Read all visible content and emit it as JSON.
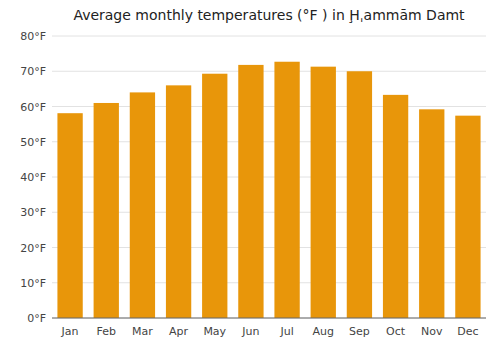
{
  "chart_data": {
    "type": "bar",
    "title": "Average monthly temperatures (°F ) in Ḩˌammām Damt",
    "categories": [
      "Jan",
      "Feb",
      "Mar",
      "Apr",
      "May",
      "Jun",
      "Jul",
      "Aug",
      "Sep",
      "Oct",
      "Nov",
      "Dec"
    ],
    "values": [
      58.1,
      61.0,
      64.0,
      66.0,
      69.3,
      71.8,
      72.7,
      71.3,
      70.0,
      63.3,
      59.2,
      57.4
    ],
    "color": "#E8960A",
    "ylim": [
      0,
      80
    ],
    "yticks": [
      {
        "value": 0,
        "label": "0°F"
      },
      {
        "value": 10,
        "label": "10°F"
      },
      {
        "value": 20,
        "label": "20°F"
      },
      {
        "value": 30,
        "label": "30°F"
      },
      {
        "value": 40,
        "label": "40°F"
      },
      {
        "value": 50,
        "label": "50°F"
      },
      {
        "value": 60,
        "label": "60°F"
      },
      {
        "value": 70,
        "label": "70°F"
      },
      {
        "value": 80,
        "label": "80°F"
      }
    ],
    "grid": true
  }
}
